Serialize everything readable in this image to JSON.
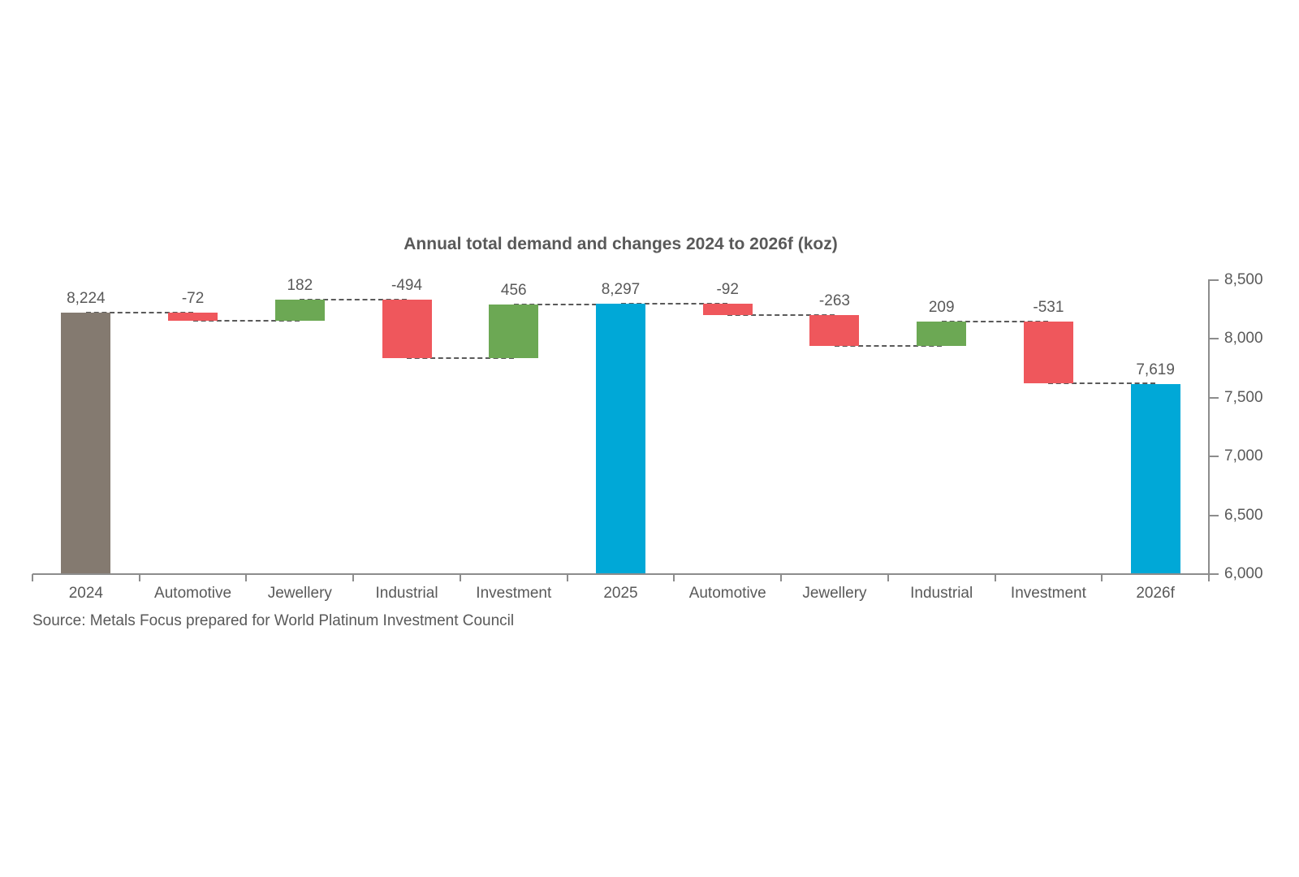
{
  "title": "Annual total demand and changes 2024 to 2026f (koz)",
  "source_note": "Source: Metals Focus prepared for World Platinum Investment Council",
  "chart_data": {
    "type": "bar",
    "subtype": "waterfall",
    "title": "Annual total demand and changes 2024 to 2026f (koz)",
    "unit": "koz",
    "categories": [
      "2024",
      "Automotive",
      "Jewellery",
      "Industrial",
      "Investment",
      "2025",
      "Automotive",
      "Jewellery",
      "Industrial",
      "Investment",
      "2026f"
    ],
    "values": [
      8224,
      -72,
      182,
      -494,
      456,
      8297,
      -92,
      -263,
      209,
      -531,
      7619
    ],
    "value_labels": [
      "8,224",
      "-72",
      "182",
      "-494",
      "456",
      "8,297",
      "-92",
      "-263",
      "209",
      "-531",
      "7,619"
    ],
    "roles": [
      "start",
      "decrease",
      "increase",
      "decrease",
      "increase",
      "total",
      "decrease",
      "decrease",
      "increase",
      "decrease",
      "total"
    ],
    "running_totals": [
      8224,
      8152,
      8334,
      7840,
      8296,
      8297,
      8205,
      7942,
      8151,
      7620,
      7619
    ],
    "ylim": [
      6000,
      8500
    ],
    "ytick_interval": 500,
    "ytick_labels": [
      "6,000",
      "6,500",
      "7,000",
      "7,500",
      "8,000",
      "8,500"
    ],
    "y_axis_side": "right",
    "x_axis": "category",
    "grid": false,
    "legend": "none",
    "connector_style": "dashed",
    "colors": {
      "start_bar": "#847A70",
      "total_bar": "#00A8D7",
      "increase_bar": "#6CA854",
      "decrease_bar": "#EF575C",
      "connector": "#5a5a5a",
      "axis": "#8c8c8c",
      "text": "#595959"
    },
    "source": "Source: Metals Focus prepared for World Platinum Investment Council"
  }
}
